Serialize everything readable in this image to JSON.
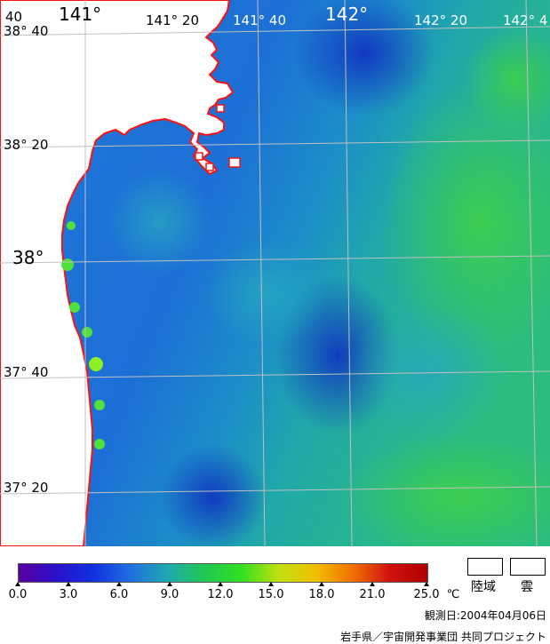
{
  "lon_labels": [
    {
      "id": "lon-140-40",
      "text": "40"
    },
    {
      "id": "lon-141",
      "text": "141°"
    },
    {
      "id": "lon-141-20",
      "text": "141°  20"
    },
    {
      "id": "lon-141-40",
      "text": "141°  40"
    },
    {
      "id": "lon-142",
      "text": "142°"
    },
    {
      "id": "lon-142-20",
      "text": "142°  20"
    },
    {
      "id": "lon-142-40",
      "text": "142°  4"
    }
  ],
  "lat_labels": [
    {
      "id": "lat-38-40",
      "text": "38°  40"
    },
    {
      "id": "lat-38-20",
      "text": "38°  20"
    },
    {
      "id": "lat-38",
      "text": "38°"
    },
    {
      "id": "lat-37-40",
      "text": "37°  40"
    },
    {
      "id": "lat-37-20",
      "text": "37°  20"
    }
  ],
  "colorbar": {
    "ticks": [
      "0.0",
      "3.0",
      "6.0",
      "9.0",
      "12.0",
      "15.0",
      "18.0",
      "21.0",
      "25.0"
    ],
    "unit": "℃",
    "colors": [
      "#5a00a0",
      "#2a10c8",
      "#1030e0",
      "#1f6fe0",
      "#20a8b0",
      "#20c850",
      "#30e020",
      "#c0e010",
      "#f0c000",
      "#f07000",
      "#d01010",
      "#b00000"
    ]
  },
  "legend": {
    "land_label": "陸域",
    "cloud_label": "雲"
  },
  "footer": {
    "obs_date": "観測日:2004年04月06日",
    "credit": "岩手県／宇宙開発事業団  共同プロジェクト"
  },
  "colors": {
    "coastline": "#ff1010",
    "grid": "#c0c0c0",
    "land": "#ffffff"
  }
}
